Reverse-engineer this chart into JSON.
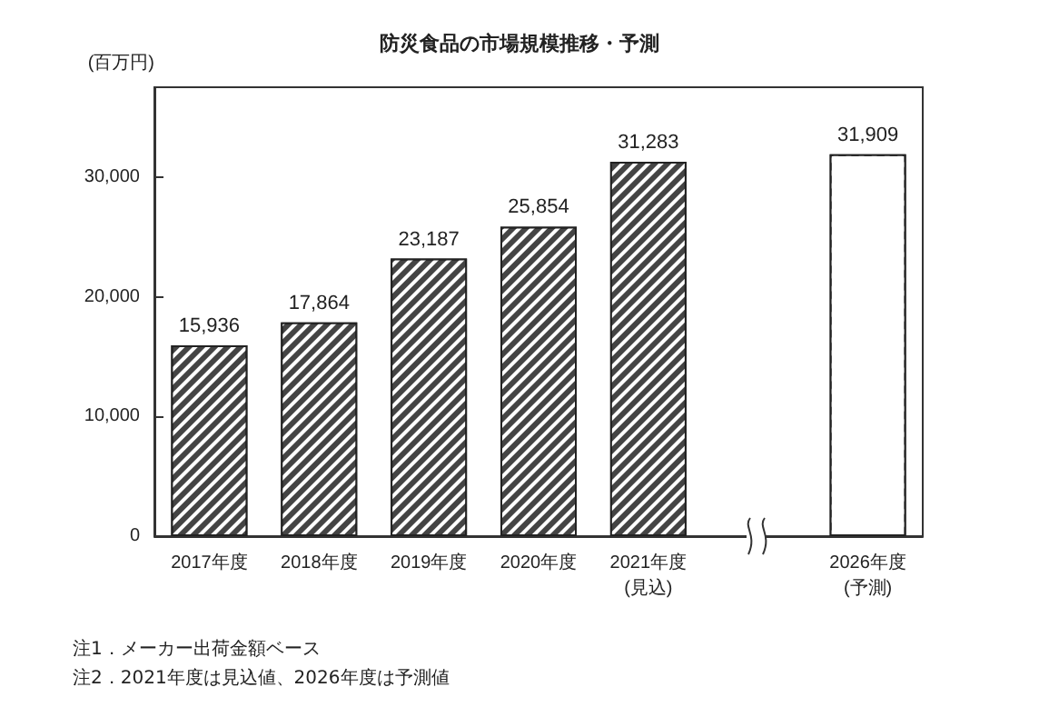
{
  "chart_data": {
    "type": "bar",
    "title": "防災食品の市場規模推移・予測",
    "ylabel": "(百万円)",
    "categories": [
      "2017年度",
      "2018年度",
      "2019年度",
      "2020年度",
      "2021年度\n(見込)",
      null,
      "2026年度\n(予測)"
    ],
    "values": [
      15936,
      17864,
      23187,
      25854,
      31283,
      null,
      31909
    ],
    "colors": [
      "#444444",
      "#444444",
      "#444444",
      "#444444",
      "#444444",
      null,
      "#ffffff"
    ],
    "ylim": [
      0,
      37500
    ],
    "yticks": [
      0,
      {
        "value": 10000,
        "label": "10,000"
      },
      {
        "value": 20000,
        "label": "20,000"
      },
      {
        "value": 30000,
        "label": "30,000"
      }
    ],
    "grid": false,
    "value_labels": [
      "15,936",
      "17,864",
      "23,187",
      "25,854",
      "31,283",
      null,
      "31,909"
    ],
    "annotations": [
      "注1．メーカー出荷金額ベース",
      "注2．2021年度は見込値、2026年度は予測値"
    ]
  }
}
